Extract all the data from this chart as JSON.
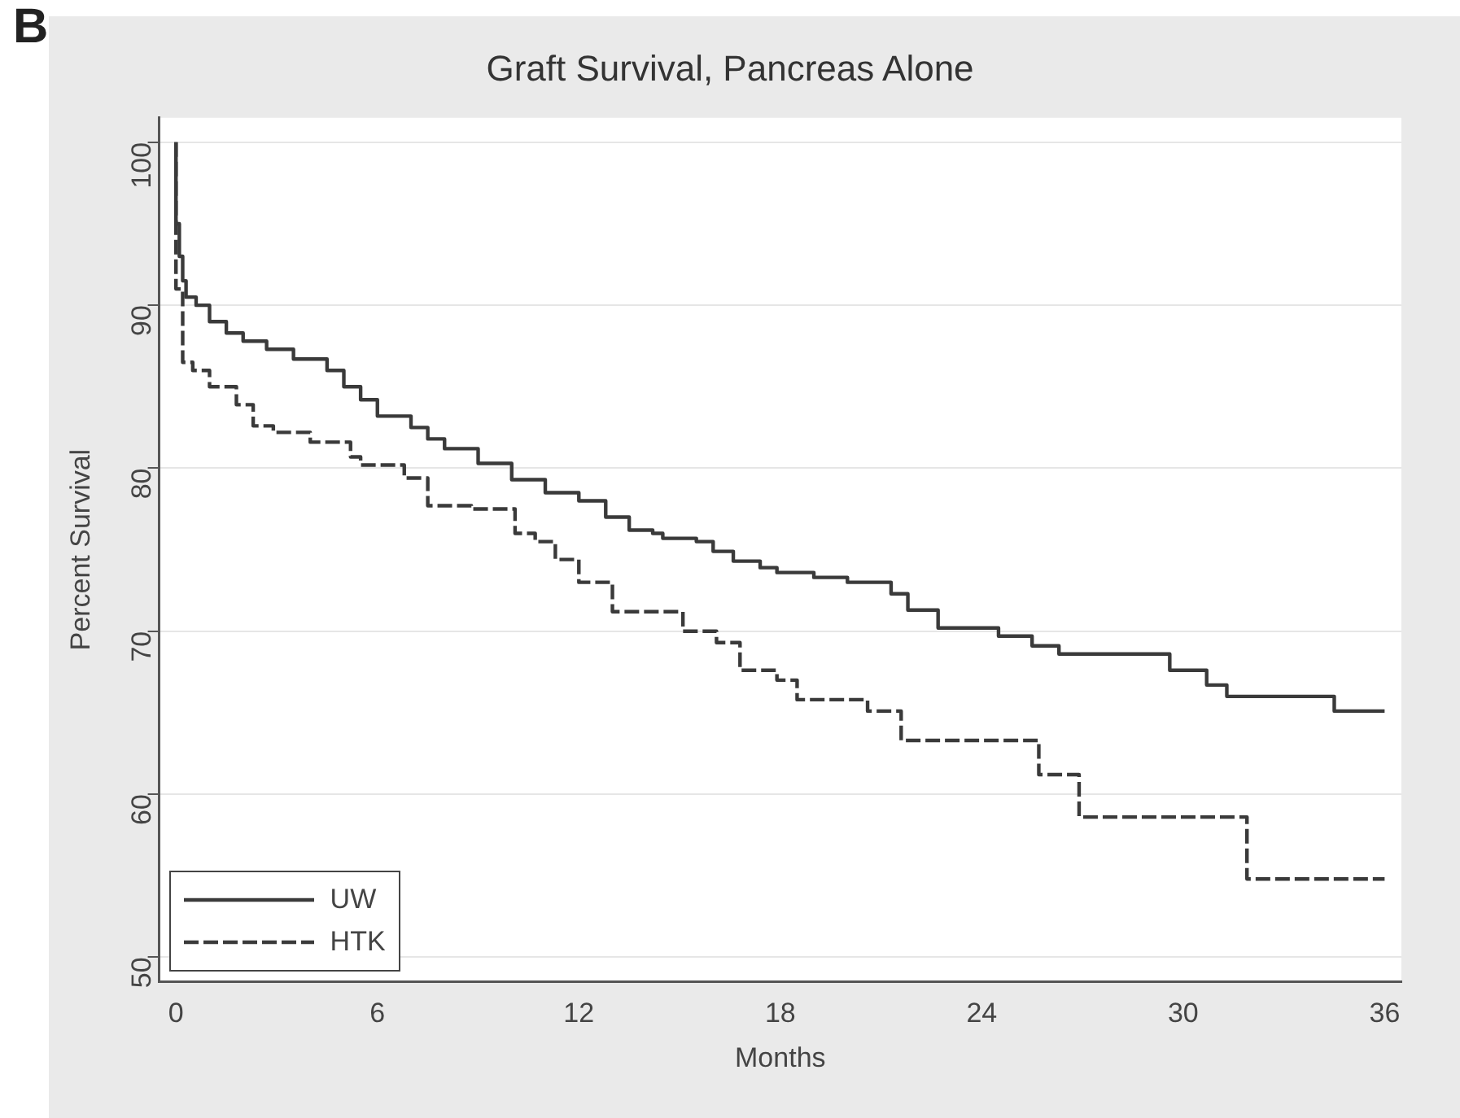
{
  "chart_data": {
    "type": "step",
    "title": "Graft Survival, Pancreas Alone",
    "xlabel": "Months",
    "ylabel": "Percent Survival",
    "annotations": [
      "B"
    ],
    "xlim": [
      -0.5,
      36.5
    ],
    "xticks": [
      0,
      6,
      12,
      18,
      24,
      30,
      36
    ],
    "ylim": [
      48.5,
      101.5
    ],
    "yticks": [
      50,
      60,
      70,
      80,
      90,
      100
    ],
    "grid": "y",
    "legend": "bottom left",
    "marker": "none",
    "series": [
      {
        "name": "UW",
        "color": "#3a3a3a",
        "line_style": "solid",
        "x": [
          0,
          0.1,
          0.2,
          0.3,
          0.6,
          1,
          1.5,
          2,
          2.7,
          3.5,
          4.5,
          5,
          5.5,
          6,
          7,
          7.5,
          8,
          9,
          10,
          11,
          12,
          12.8,
          13.5,
          14.2,
          14.5,
          15.5,
          16,
          16.6,
          17.4,
          17.9,
          19,
          20,
          21.3,
          21.8,
          22.7,
          24.5,
          25.5,
          26.3,
          29.6,
          30.7,
          31.3,
          34.5,
          35.9,
          36
        ],
        "values": [
          100,
          95,
          93,
          91.5,
          90.5,
          90,
          89,
          88.3,
          87.8,
          87.3,
          86.7,
          86,
          85,
          84.2,
          83.2,
          82.5,
          81.8,
          81.2,
          80.3,
          79.3,
          78.5,
          78,
          77,
          76.2,
          76,
          75.7,
          75.5,
          74.9,
          74.3,
          73.9,
          73.6,
          73.3,
          73,
          72.3,
          71.3,
          70.2,
          69.7,
          69.1,
          68.6,
          67.6,
          66.7,
          66,
          65.1,
          65.1
        ]
      },
      {
        "name": "HTK",
        "color": "#3a3a3a",
        "line_style": "dashed",
        "x": [
          0,
          0.2,
          0.5,
          1,
          1.8,
          2.3,
          2.9,
          4,
          5.2,
          5.5,
          6.8,
          7.5,
          8.8,
          10.1,
          10.7,
          11.3,
          12,
          13,
          15.1,
          16.1,
          16.8,
          17.9,
          18.5,
          20.6,
          21.6,
          25.7,
          26.9,
          31.9,
          35.4,
          36
        ],
        "values": [
          100,
          91,
          86.5,
          86,
          85,
          83.9,
          82.6,
          82.2,
          81.6,
          80.7,
          80.2,
          79.4,
          77.7,
          77.5,
          76,
          75.5,
          74.4,
          73,
          71.2,
          70,
          69.3,
          67.6,
          67,
          65.8,
          65.1,
          63.3,
          61.2,
          58.6,
          54.8,
          54.8
        ]
      }
    ]
  }
}
